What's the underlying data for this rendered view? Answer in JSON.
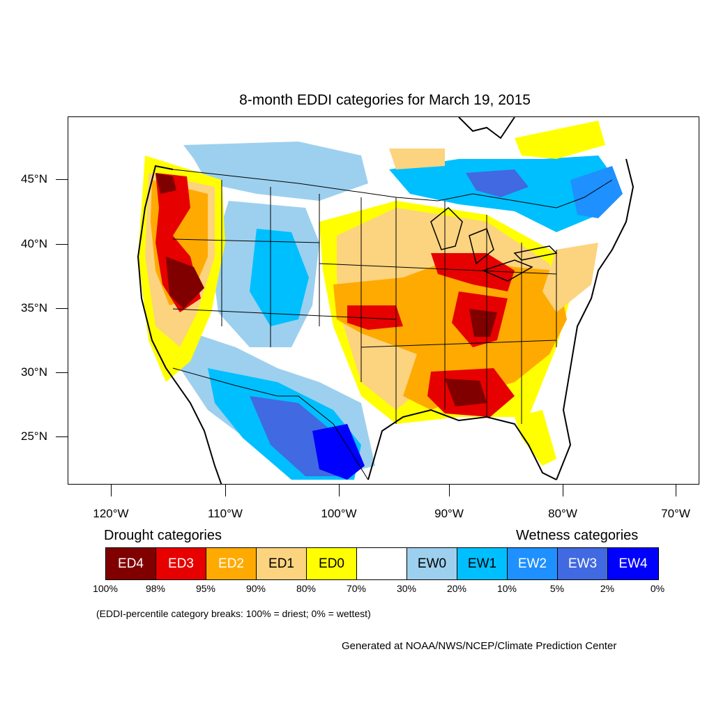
{
  "map": {
    "title": "8-month EDDI categories for March 19, 2015",
    "lat_labels": [
      "45°N",
      "40°N",
      "35°N",
      "30°N",
      "25°N"
    ],
    "lon_labels": [
      "120°W",
      "110°W",
      "100°W",
      "90°W",
      "80°W",
      "70°W"
    ]
  },
  "legend": {
    "drought_heading": "Drought categories",
    "wetness_heading": "Wetness categories",
    "categories": [
      {
        "label": "ED4",
        "color": "#800000",
        "text_color": "#ffffff"
      },
      {
        "label": "ED3",
        "color": "#e60000",
        "text_color": "#ffffff"
      },
      {
        "label": "ED2",
        "color": "#ffaa00",
        "text_color": "#ffffff"
      },
      {
        "label": "ED1",
        "color": "#fcd37f",
        "text_color": "#000000"
      },
      {
        "label": "ED0",
        "color": "#ffff00",
        "text_color": "#000000"
      },
      {
        "label": "",
        "color": "#ffffff",
        "text_color": "#000000"
      },
      {
        "label": "EW0",
        "color": "#9dd0ee",
        "text_color": "#000000"
      },
      {
        "label": "EW1",
        "color": "#00bfff",
        "text_color": "#000000"
      },
      {
        "label": "EW2",
        "color": "#1e90ff",
        "text_color": "#ffffff"
      },
      {
        "label": "EW3",
        "color": "#4169e1",
        "text_color": "#ffffff"
      },
      {
        "label": "EW4",
        "color": "#0000ff",
        "text_color": "#ffffff"
      }
    ],
    "percentiles": [
      "100%",
      "98%",
      "95%",
      "90%",
      "80%",
      "70%",
      "30%",
      "20%",
      "10%",
      "5%",
      "2%",
      "0%"
    ],
    "breaks_note": "(EDDI-percentile category breaks: 100% = driest; 0% = wettest)"
  },
  "credit": "Generated at NOAA/NWS/NCEP/Climate Prediction Center"
}
